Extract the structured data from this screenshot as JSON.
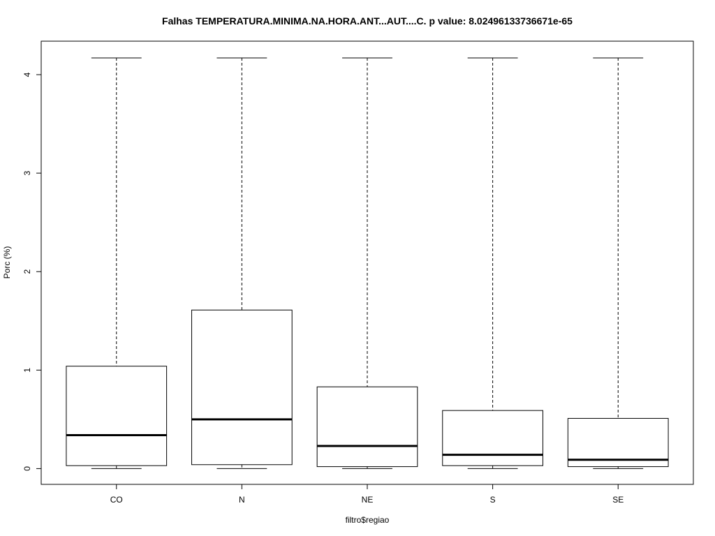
{
  "chart_data": {
    "type": "box",
    "title": "Falhas TEMPERATURA.MINIMA.NA.HORA.ANT...AUT....C. p value: 8.02496133736671e-65",
    "xlabel": "filtro$regiao",
    "ylabel": "Porc (%)",
    "categories": [
      "CO",
      "N",
      "NE",
      "S",
      "SE"
    ],
    "yticks": [
      "0",
      "1",
      "2",
      "3",
      "4"
    ],
    "ylim": [
      -0.16,
      4.34
    ],
    "boxes": [
      {
        "category": "CO",
        "min": 0,
        "q1": 0.03,
        "median": 0.34,
        "q3": 1.04,
        "max": 4.17
      },
      {
        "category": "N",
        "min": 0,
        "q1": 0.04,
        "median": 0.5,
        "q3": 1.61,
        "max": 4.17
      },
      {
        "category": "NE",
        "min": 0,
        "q1": 0.02,
        "median": 0.23,
        "q3": 0.83,
        "max": 4.17
      },
      {
        "category": "S",
        "min": 0,
        "q1": 0.03,
        "median": 0.14,
        "q3": 0.59,
        "max": 4.17
      },
      {
        "category": "SE",
        "min": 0,
        "q1": 0.02,
        "median": 0.09,
        "q3": 0.51,
        "max": 4.17
      }
    ],
    "grid": false,
    "colors": {
      "box_fill": "#ffffff",
      "stroke": "#000000"
    }
  }
}
